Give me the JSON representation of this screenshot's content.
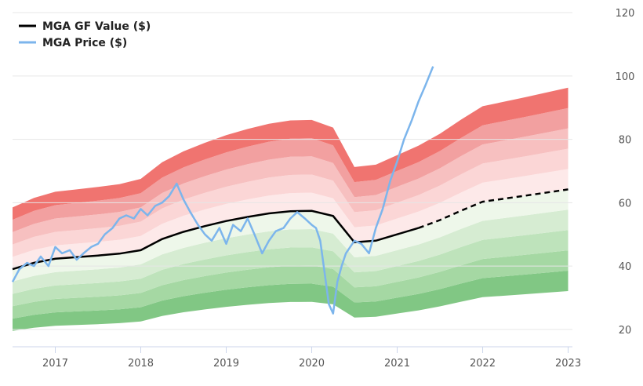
{
  "chart_data": {
    "type": "line",
    "title": "",
    "xlabel": "",
    "ylabel": "",
    "xlim": [
      2016.5,
      2023.05
    ],
    "ylim": [
      15,
      122
    ],
    "x_ticks": [
      2017,
      2018,
      2019,
      2020,
      2021,
      2022,
      2023
    ],
    "x_tick_labels": [
      "2017",
      "2018",
      "2019",
      "2020",
      "2021",
      "2022",
      "2023"
    ],
    "y_ticks": [
      20,
      40,
      60,
      80,
      100,
      120
    ],
    "y_tick_labels": [
      "20",
      "40",
      "60",
      "80",
      "100",
      "120"
    ],
    "y_axis_position": "right",
    "grid": "horizontal",
    "legend_position": "top-left",
    "legend": [
      "MGA GF Value ($)",
      "MGA Price ($)"
    ],
    "colors": {
      "gf_value": "#000000",
      "price": "#7cb5ec",
      "band_red": [
        "#f07470",
        "#f2a0a0",
        "#f7c3c3",
        "#fde1e1"
      ],
      "band_green": [
        "#eef7ea",
        "#d6ecd2",
        "#bee3bb",
        "#a5d8a3",
        "#81c784"
      ]
    },
    "gf_value_projection_start": 2021.45,
    "series": [
      {
        "name": "MGA GF Value ($)",
        "x": [
          2016.5,
          2016.75,
          2017.0,
          2017.25,
          2017.5,
          2017.75,
          2018.0,
          2018.25,
          2018.5,
          2018.75,
          2019.0,
          2019.25,
          2019.5,
          2019.75,
          2020.0,
          2020.25,
          2020.5,
          2020.75,
          2021.0,
          2021.25,
          2021.5,
          2021.75,
          2022.0,
          2022.5,
          2023.0
        ],
        "values": [
          39,
          41,
          42.3,
          42.8,
          43.3,
          43.9,
          45,
          48.5,
          50.8,
          52.6,
          54.2,
          55.5,
          56.6,
          57.3,
          57.4,
          55.8,
          47.5,
          48,
          50,
          52,
          54.5,
          57.5,
          60.3,
          62.2,
          64.2
        ]
      },
      {
        "name": "MGA Price ($)",
        "x": [
          2016.5,
          2016.58,
          2016.67,
          2016.75,
          2016.83,
          2016.92,
          2017.0,
          2017.08,
          2017.17,
          2017.25,
          2017.33,
          2017.42,
          2017.5,
          2017.58,
          2017.67,
          2017.75,
          2017.83,
          2017.92,
          2018.0,
          2018.08,
          2018.17,
          2018.25,
          2018.33,
          2018.42,
          2018.5,
          2018.58,
          2018.67,
          2018.75,
          2018.83,
          2018.92,
          2019.0,
          2019.08,
          2019.17,
          2019.25,
          2019.33,
          2019.42,
          2019.5,
          2019.58,
          2019.67,
          2019.75,
          2019.83,
          2019.92,
          2020.0,
          2020.05,
          2020.1,
          2020.15,
          2020.2,
          2020.25,
          2020.3,
          2020.35,
          2020.4,
          2020.45,
          2020.5,
          2020.58,
          2020.67,
          2020.75,
          2020.83,
          2020.92,
          2021.0,
          2021.08,
          2021.17,
          2021.25,
          2021.33,
          2021.42
        ],
        "values": [
          35,
          39,
          41,
          40,
          43,
          40,
          46,
          44,
          45,
          42,
          44,
          46,
          47,
          50,
          52,
          55,
          56,
          55,
          58,
          56,
          59,
          60,
          62,
          66,
          61,
          57,
          53,
          50,
          48,
          52,
          47,
          53,
          51,
          55,
          50,
          44,
          48,
          51,
          52,
          55,
          57,
          55,
          53,
          52,
          48,
          38,
          28,
          25,
          35,
          40,
          44,
          46,
          48,
          47,
          44,
          52,
          58,
          67,
          73,
          80,
          86,
          92,
          97,
          103
        ]
      }
    ]
  }
}
